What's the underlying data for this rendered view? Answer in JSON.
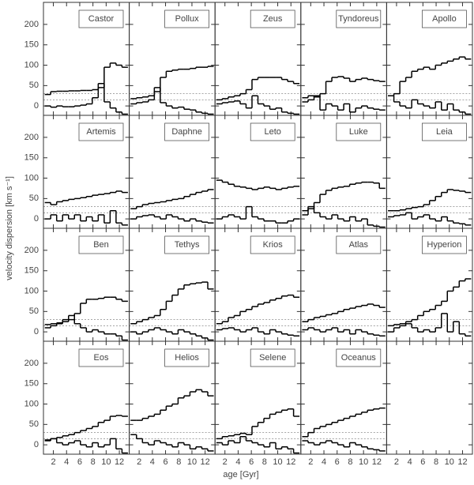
{
  "chart_data": {
    "type": "step",
    "xlabel": "age [Gyr]",
    "ylabel": "velocity dispersion [km s⁻¹]",
    "xlim": [
      0.5,
      13.5
    ],
    "ylim": [
      -23,
      254
    ],
    "xticks": [
      2,
      4,
      6,
      8,
      10,
      12
    ],
    "yticks": [
      0,
      50,
      100,
      150,
      200
    ],
    "dashed_lines": [
      30,
      15
    ],
    "bins": [
      0.7,
      1.6,
      2.5,
      3.4,
      4.3,
      5.2,
      6.1,
      7.0,
      7.9,
      8.8,
      9.7,
      10.6,
      11.5,
      12.4,
      13.3
    ],
    "panels": [
      {
        "title": "Castor",
        "series": [
          {
            "color": "#000",
            "values": [
              28,
              35,
              36,
              36,
              37,
              37,
              38,
              38,
              40,
              45,
              95,
              105,
              100,
              95
            ]
          },
          {
            "color": "#000",
            "values": [
              0,
              -3,
              0,
              -2,
              -2,
              0,
              2,
              5,
              20,
              55,
              10,
              -5,
              -15,
              -20
            ]
          }
        ]
      },
      {
        "title": "Pollux",
        "series": [
          {
            "color": "#000",
            "values": [
              18,
              20,
              22,
              25,
              35,
              70,
              85,
              88,
              90,
              90,
              92,
              95,
              95,
              97
            ]
          },
          {
            "color": "#000",
            "values": [
              5,
              8,
              10,
              15,
              45,
              8,
              0,
              -5,
              -3,
              -8,
              -10,
              -15,
              -18,
              -20
            ]
          }
        ]
      },
      {
        "title": "Zeus",
        "series": [
          {
            "color": "#000",
            "values": [
              15,
              18,
              22,
              25,
              30,
              40,
              65,
              70,
              70,
              70,
              70,
              65,
              60,
              55
            ]
          },
          {
            "color": "#000",
            "values": [
              5,
              8,
              10,
              12,
              5,
              -5,
              25,
              5,
              0,
              -8,
              -5,
              -15,
              -18,
              -20
            ]
          }
        ]
      },
      {
        "title": "Tyndoreus",
        "series": [
          {
            "color": "#000",
            "values": [
              20,
              25,
              22,
              30,
              60,
              70,
              72,
              68,
              60,
              65,
              68,
              65,
              62,
              60
            ]
          },
          {
            "color": "#000",
            "values": [
              10,
              15,
              25,
              -10,
              5,
              0,
              -10,
              5,
              -15,
              -5,
              0,
              -5,
              -8,
              -10
            ]
          }
        ]
      },
      {
        "title": "Apollo",
        "series": [
          {
            "color": "#000",
            "values": [
              25,
              30,
              60,
              70,
              85,
              90,
              95,
              90,
              100,
              105,
              110,
              115,
              120,
              115
            ]
          },
          {
            "color": "#000",
            "values": [
              25,
              10,
              0,
              -5,
              15,
              5,
              0,
              -5,
              10,
              -10,
              5,
              -10,
              -15,
              -20
            ]
          }
        ]
      },
      {
        "title": "Artemis",
        "series": [
          {
            "color": "#000",
            "values": [
              40,
              35,
              42,
              45,
              48,
              50,
              52,
              55,
              58,
              60,
              62,
              65,
              68,
              65
            ]
          },
          {
            "color": "#000",
            "values": [
              0,
              10,
              -5,
              10,
              0,
              10,
              -5,
              5,
              -5,
              10,
              -10,
              20,
              -10,
              -15
            ]
          }
        ]
      },
      {
        "title": "Daphne",
        "series": [
          {
            "color": "#000",
            "values": [
              25,
              30,
              35,
              38,
              40,
              42,
              45,
              48,
              50,
              55,
              60,
              65,
              68,
              72
            ]
          },
          {
            "color": "#000",
            "values": [
              0,
              5,
              8,
              10,
              5,
              0,
              10,
              5,
              0,
              -5,
              0,
              -5,
              -8,
              -10
            ]
          }
        ]
      },
      {
        "title": "Leto",
        "series": [
          {
            "color": "#000",
            "values": [
              95,
              90,
              85,
              80,
              78,
              75,
              72,
              75,
              78,
              75,
              72,
              75,
              78,
              80
            ]
          },
          {
            "color": "#000",
            "values": [
              0,
              5,
              10,
              5,
              0,
              30,
              5,
              0,
              -5,
              -5,
              -10,
              -10,
              -5,
              0
            ]
          }
        ]
      },
      {
        "title": "Luke",
        "series": [
          {
            "color": "#000",
            "values": [
              20,
              25,
              40,
              60,
              70,
              75,
              78,
              80,
              85,
              88,
              90,
              90,
              88,
              75
            ]
          },
          {
            "color": "#000",
            "values": [
              10,
              30,
              15,
              5,
              0,
              10,
              0,
              -5,
              5,
              -5,
              0,
              -15,
              -18,
              -20
            ]
          }
        ]
      },
      {
        "title": "Leia",
        "series": [
          {
            "color": "#000",
            "values": [
              20,
              20,
              22,
              25,
              28,
              30,
              35,
              45,
              55,
              65,
              72,
              70,
              68,
              65
            ]
          },
          {
            "color": "#000",
            "values": [
              5,
              8,
              10,
              15,
              0,
              5,
              10,
              0,
              -5,
              5,
              -5,
              -10,
              -12,
              -15
            ]
          }
        ]
      },
      {
        "title": "Ben",
        "series": [
          {
            "color": "#000",
            "values": [
              18,
              20,
              22,
              25,
              30,
              45,
              70,
              80,
              80,
              82,
              85,
              85,
              80,
              75
            ]
          },
          {
            "color": "#000",
            "values": [
              10,
              15,
              20,
              30,
              40,
              20,
              10,
              0,
              5,
              0,
              -5,
              -5,
              -10,
              -20
            ]
          }
        ]
      },
      {
        "title": "Tethys",
        "series": [
          {
            "color": "#000",
            "values": [
              20,
              25,
              30,
              35,
              40,
              55,
              75,
              90,
              105,
              115,
              118,
              120,
              122,
              105
            ]
          },
          {
            "color": "#000",
            "values": [
              0,
              -5,
              0,
              5,
              10,
              5,
              0,
              -5,
              5,
              0,
              -5,
              -10,
              -15,
              -20
            ]
          }
        ]
      },
      {
        "title": "Krios",
        "series": [
          {
            "color": "#000",
            "values": [
              20,
              25,
              35,
              40,
              50,
              55,
              62,
              68,
              72,
              78,
              82,
              88,
              90,
              85
            ]
          },
          {
            "color": "#000",
            "values": [
              5,
              8,
              10,
              5,
              0,
              5,
              10,
              0,
              -5,
              5,
              0,
              -5,
              -8,
              -10
            ]
          }
        ]
      },
      {
        "title": "Atlas",
        "series": [
          {
            "color": "#000",
            "values": [
              25,
              30,
              35,
              38,
              42,
              45,
              50,
              55,
              58,
              62,
              65,
              68,
              65,
              60
            ]
          },
          {
            "color": "#000",
            "values": [
              5,
              10,
              5,
              0,
              5,
              10,
              0,
              5,
              -5,
              5,
              0,
              -5,
              -8,
              -10
            ]
          }
        ]
      },
      {
        "title": "Hyperion",
        "series": [
          {
            "color": "#000",
            "values": [
              15,
              18,
              20,
              25,
              30,
              40,
              50,
              55,
              65,
              75,
              100,
              110,
              125,
              130
            ]
          },
          {
            "color": "#000",
            "values": [
              0,
              10,
              15,
              20,
              10,
              0,
              5,
              0,
              10,
              45,
              0,
              25,
              -5,
              -10
            ]
          }
        ]
      },
      {
        "title": "Eos",
        "series": [
          {
            "color": "#000",
            "values": [
              12,
              15,
              18,
              22,
              25,
              30,
              35,
              40,
              45,
              55,
              60,
              70,
              72,
              70
            ]
          },
          {
            "color": "#000",
            "values": [
              10,
              15,
              5,
              0,
              5,
              10,
              0,
              -5,
              5,
              -5,
              0,
              15,
              -10,
              -20
            ]
          }
        ]
      },
      {
        "title": "Helios",
        "series": [
          {
            "color": "#000",
            "values": [
              60,
              60,
              65,
              70,
              75,
              85,
              95,
              100,
              115,
              120,
              130,
              135,
              130,
              120
            ]
          },
          {
            "color": "#000",
            "values": [
              25,
              15,
              5,
              0,
              10,
              5,
              0,
              -5,
              5,
              0,
              -10,
              -5,
              -10,
              -15
            ]
          }
        ]
      },
      {
        "title": "Selene",
        "series": [
          {
            "color": "#000",
            "values": [
              15,
              20,
              22,
              25,
              28,
              25,
              45,
              55,
              65,
              75,
              80,
              85,
              88,
              70
            ]
          },
          {
            "color": "#000",
            "values": [
              5,
              0,
              10,
              5,
              20,
              10,
              5,
              0,
              -5,
              5,
              -10,
              -5,
              -10,
              -20
            ]
          }
        ]
      },
      {
        "title": "Oceanus",
        "series": [
          {
            "color": "#000",
            "values": [
              20,
              30,
              40,
              45,
              50,
              55,
              60,
              65,
              70,
              75,
              80,
              85,
              88,
              90
            ]
          },
          {
            "color": "#000",
            "values": [
              10,
              5,
              0,
              5,
              10,
              5,
              0,
              -5,
              5,
              0,
              -5,
              -10,
              -12,
              -15
            ]
          }
        ]
      }
    ]
  }
}
